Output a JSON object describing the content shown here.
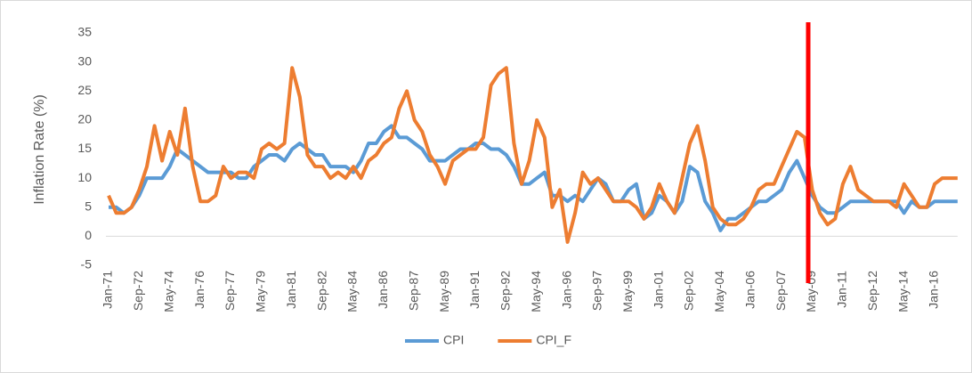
{
  "chart_data": {
    "type": "line",
    "y_label": "Inflation Rate (%)",
    "categories": [
      "Jan-71",
      null,
      null,
      null,
      "Sep-72",
      null,
      null,
      null,
      "May-74",
      null,
      null,
      null,
      "Jan-76",
      null,
      null,
      null,
      "Sep-77",
      null,
      null,
      null,
      "May-79",
      null,
      null,
      null,
      "Jan-81",
      null,
      null,
      null,
      "Sep-82",
      null,
      null,
      null,
      "May-84",
      null,
      null,
      null,
      "Jan-86",
      null,
      null,
      null,
      "Sep-87",
      null,
      null,
      null,
      "May-89",
      null,
      null,
      null,
      "Jan-91",
      null,
      null,
      null,
      "Sep-92",
      null,
      null,
      null,
      "May-94",
      null,
      null,
      null,
      "Jan-96",
      null,
      null,
      null,
      "Sep-97",
      null,
      null,
      null,
      "May-99",
      null,
      null,
      null,
      "Jan-01",
      null,
      null,
      null,
      "Sep-02",
      null,
      null,
      null,
      "May-04",
      null,
      null,
      null,
      "Jan-06",
      null,
      null,
      null,
      "Sep-07",
      null,
      null,
      null,
      "May-09",
      null,
      null,
      null,
      "Jan-11",
      null,
      null,
      null,
      "Sep-12",
      null,
      null,
      null,
      "May-14",
      null,
      null,
      null,
      "Jan-16",
      null,
      null,
      null
    ],
    "series": [
      {
        "name": "CPI",
        "color": "#5b9bd5",
        "values": [
          5,
          5,
          4,
          5,
          7,
          10,
          10,
          10,
          12,
          15,
          14,
          13,
          12,
          11,
          11,
          11,
          11,
          10,
          10,
          12,
          13,
          14,
          14,
          13,
          15,
          16,
          15,
          14,
          14,
          12,
          12,
          12,
          11,
          13,
          16,
          16,
          18,
          19,
          17,
          17,
          16,
          15,
          13,
          13,
          13,
          14,
          15,
          15,
          16,
          16,
          15,
          15,
          14,
          12,
          9,
          9,
          10,
          11,
          7,
          7,
          6,
          7,
          6,
          8,
          10,
          9,
          6,
          6,
          8,
          9,
          3,
          4,
          7,
          6,
          4,
          6,
          12,
          11,
          6,
          4,
          1,
          3,
          3,
          4,
          5,
          6,
          6,
          7,
          8,
          11,
          13,
          10,
          7,
          5,
          4,
          4,
          5,
          6,
          6,
          6,
          6,
          6,
          6,
          6,
          4,
          6,
          5,
          5,
          6,
          6,
          6,
          6
        ]
      },
      {
        "name": "CPI_F",
        "color": "#ed7d31",
        "values": [
          7,
          4,
          4,
          5,
          8,
          12,
          19,
          13,
          18,
          14,
          22,
          12,
          6,
          6,
          7,
          12,
          10,
          11,
          11,
          10,
          15,
          16,
          15,
          16,
          29,
          24,
          14,
          12,
          12,
          10,
          11,
          10,
          12,
          10,
          13,
          14,
          16,
          17,
          22,
          25,
          20,
          18,
          14,
          12,
          9,
          13,
          14,
          15,
          15,
          17,
          26,
          28,
          29,
          16,
          9,
          13,
          20,
          17,
          5,
          8,
          -1,
          4,
          11,
          9,
          10,
          8,
          6,
          6,
          6,
          5,
          3,
          5,
          9,
          6,
          4,
          10,
          16,
          19,
          13,
          5,
          3,
          2,
          2,
          3,
          5,
          8,
          9,
          9,
          12,
          15,
          18,
          17,
          8,
          4,
          2,
          3,
          9,
          12,
          8,
          7,
          6,
          6,
          6,
          5,
          9,
          7,
          5,
          5,
          9,
          10,
          10,
          10
        ]
      }
    ],
    "ylim": [
      -5,
      35
    ],
    "yticks": [
      -5,
      0,
      5,
      10,
      15,
      20,
      25,
      30,
      35
    ],
    "grid": false,
    "legend": "bottom"
  }
}
